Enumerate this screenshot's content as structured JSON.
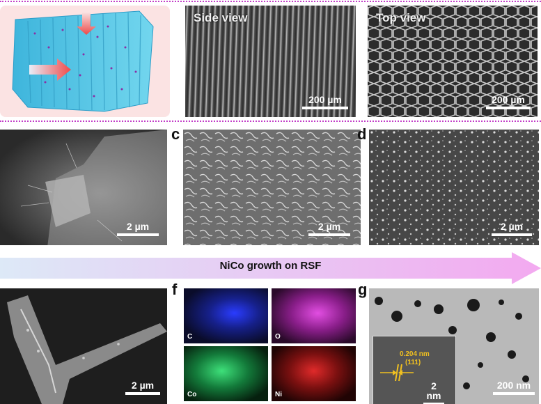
{
  "panels": {
    "c": "c",
    "d": "d",
    "f": "f",
    "g": "g"
  },
  "views": {
    "side": "Side view",
    "top": "Top view"
  },
  "scale_bars": {
    "side": "200 µm",
    "top": "200 µm",
    "row2_left": "2 µm",
    "c": "2 µm",
    "d": "2 µm",
    "row3_left": "2 µm",
    "g_inset": "2 nm",
    "g": "200 nm"
  },
  "growth_label": "NiCo growth on RSF",
  "eds_maps": [
    {
      "element": "C",
      "color": "#3040ff"
    },
    {
      "element": "O",
      "color": "#e040e0"
    },
    {
      "element": "Co",
      "color": "#30d070"
    },
    {
      "element": "Ni",
      "color": "#e02020"
    }
  ],
  "hrtem": {
    "spacing": "0.204 nm",
    "plane": "(111)"
  },
  "colors": {
    "divider": "#c23ec8",
    "scaffold": "#55c8e8",
    "arrow_start": "#dde9f7",
    "arrow_end": "#f3a9f0"
  }
}
